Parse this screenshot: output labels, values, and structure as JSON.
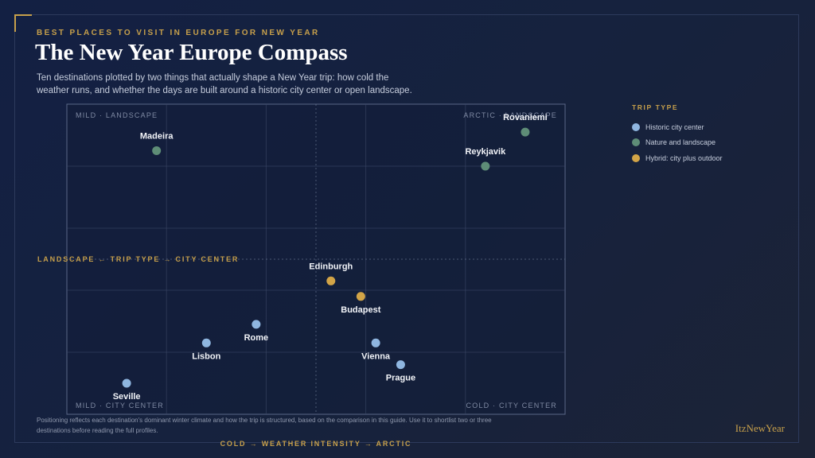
{
  "header": {
    "eyebrow": "BEST PLACES TO VISIT IN EUROPE FOR NEW YEAR",
    "title": "The New Year Europe Compass",
    "subtitle": "Ten destinations plotted by two things that actually shape a New Year trip: how cold the weather runs, and whether the days are built around a historic city center or open landscape."
  },
  "legend": {
    "title": "TRIP TYPE",
    "items": [
      {
        "label": "Historic city center",
        "color": "#8fb6e0"
      },
      {
        "label": "Nature and landscape",
        "color": "#5e8d77"
      },
      {
        "label": "Hybrid: city plus outdoor",
        "color": "#d2a447"
      }
    ]
  },
  "chart_data": {
    "type": "scatter",
    "xlabel": "COLD → WEATHER INTENSITY → ARCTIC",
    "ylabel": "LANDSCAPE ← TRIP TYPE → CITY CENTER",
    "xlim": [
      0,
      10
    ],
    "ylim": [
      0,
      10
    ],
    "quadrant_labels": {
      "top_left": "MILD · LANDSCAPE",
      "top_right": "ARCTIC · LANDSCAPE",
      "bottom_left": "MILD · CITY CENTER",
      "bottom_right": "COLD · CITY CENTER"
    },
    "points": [
      {
        "label": "Madeira",
        "x": 1.8,
        "y": 8.5,
        "category": "Nature and landscape",
        "label_pos": "above"
      },
      {
        "label": "Rovaniemi",
        "x": 9.2,
        "y": 9.1,
        "category": "Nature and landscape",
        "label_pos": "above"
      },
      {
        "label": "Reykjavik",
        "x": 8.4,
        "y": 8.0,
        "category": "Nature and landscape",
        "label_pos": "above"
      },
      {
        "label": "Edinburgh",
        "x": 5.3,
        "y": 4.3,
        "category": "Hybrid: city plus outdoor",
        "label_pos": "above"
      },
      {
        "label": "Budapest",
        "x": 5.9,
        "y": 3.8,
        "category": "Hybrid: city plus outdoor",
        "label_pos": "below"
      },
      {
        "label": "Rome",
        "x": 3.8,
        "y": 2.9,
        "category": "Historic city center",
        "label_pos": "below"
      },
      {
        "label": "Lisbon",
        "x": 2.8,
        "y": 2.3,
        "category": "Historic city center",
        "label_pos": "below"
      },
      {
        "label": "Vienna",
        "x": 6.2,
        "y": 2.3,
        "category": "Historic city center",
        "label_pos": "below"
      },
      {
        "label": "Prague",
        "x": 6.7,
        "y": 1.6,
        "category": "Historic city center",
        "label_pos": "below"
      },
      {
        "label": "Seville",
        "x": 1.2,
        "y": 1.0,
        "category": "Historic city center",
        "label_pos": "below"
      }
    ]
  },
  "footnote": "Positioning reflects each destination's dominant winter climate and how the trip is structured, based on the comparison in this guide. Use it to shortlist two or three destinations before reading the full profiles.",
  "brand": "ItzNewYear"
}
